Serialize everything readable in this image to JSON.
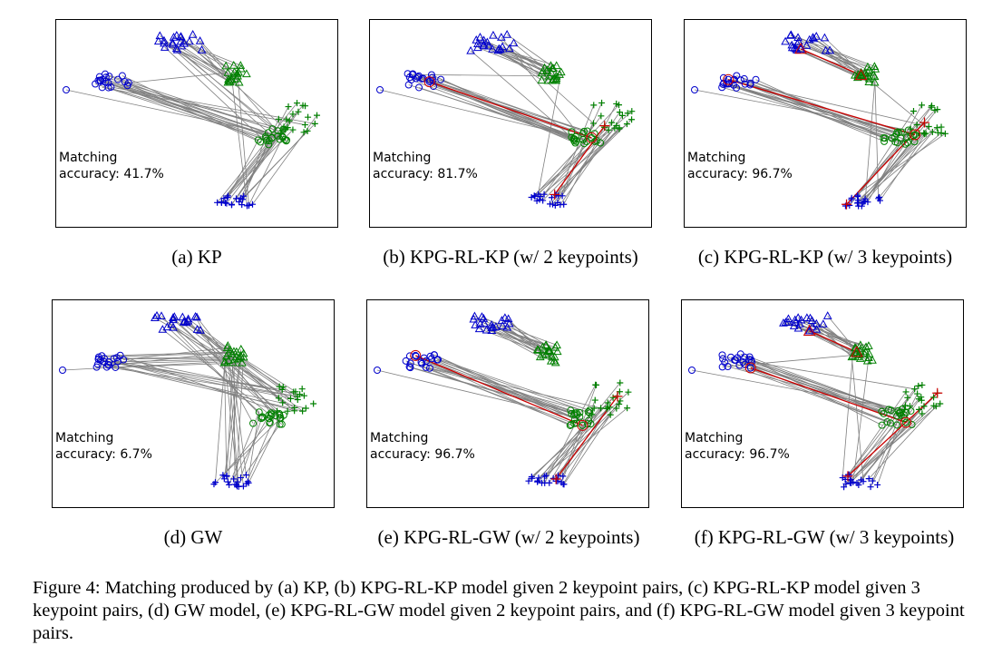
{
  "figure": {
    "panels": [
      {
        "id": "a",
        "accuracy_line1": "Matching",
        "accuracy_line2": "accuracy: 41.7%",
        "caption": "(a)  KP",
        "keypoints": 0
      },
      {
        "id": "b",
        "accuracy_line1": "Matching",
        "accuracy_line2": "accuracy: 81.7%",
        "caption": "(b)  KPG-RL-KP (w/ 2 keypoints)",
        "keypoints": 2
      },
      {
        "id": "c",
        "accuracy_line1": "Matching",
        "accuracy_line2": "accuracy: 96.7%",
        "caption": "(c)  KPG-RL-KP (w/ 3 keypoints)",
        "keypoints": 3
      },
      {
        "id": "d",
        "accuracy_line1": "Matching",
        "accuracy_line2": "accuracy: 6.7%",
        "caption": "(d)  GW",
        "keypoints": 0
      },
      {
        "id": "e",
        "accuracy_line1": "Matching",
        "accuracy_line2": "accuracy: 96.7%",
        "caption": "(e)  KPG-RL-GW (w/ 2 keypoints)",
        "keypoints": 2
      },
      {
        "id": "f",
        "accuracy_line1": "Matching",
        "accuracy_line2": "accuracy: 96.7%",
        "caption": "(f)  KPG-RL-GW (w/ 3 keypoints)",
        "keypoints": 3
      }
    ],
    "caption": "Figure 4: Matching produced by (a) KP, (b) KPG-RL-KP model given 2 keypoint pairs, (c) KPG-RL-KP model given 3 keypoint pairs, (d) GW model, (e) KPG-RL-GW model given 2 keypoint pairs, and (f) KPG-RL-GW model given 3 keypoint pairs.",
    "colors": {
      "source": "#0000cc",
      "target": "#008000",
      "match_line": "#808080",
      "keypoint": "#cc0000"
    }
  }
}
